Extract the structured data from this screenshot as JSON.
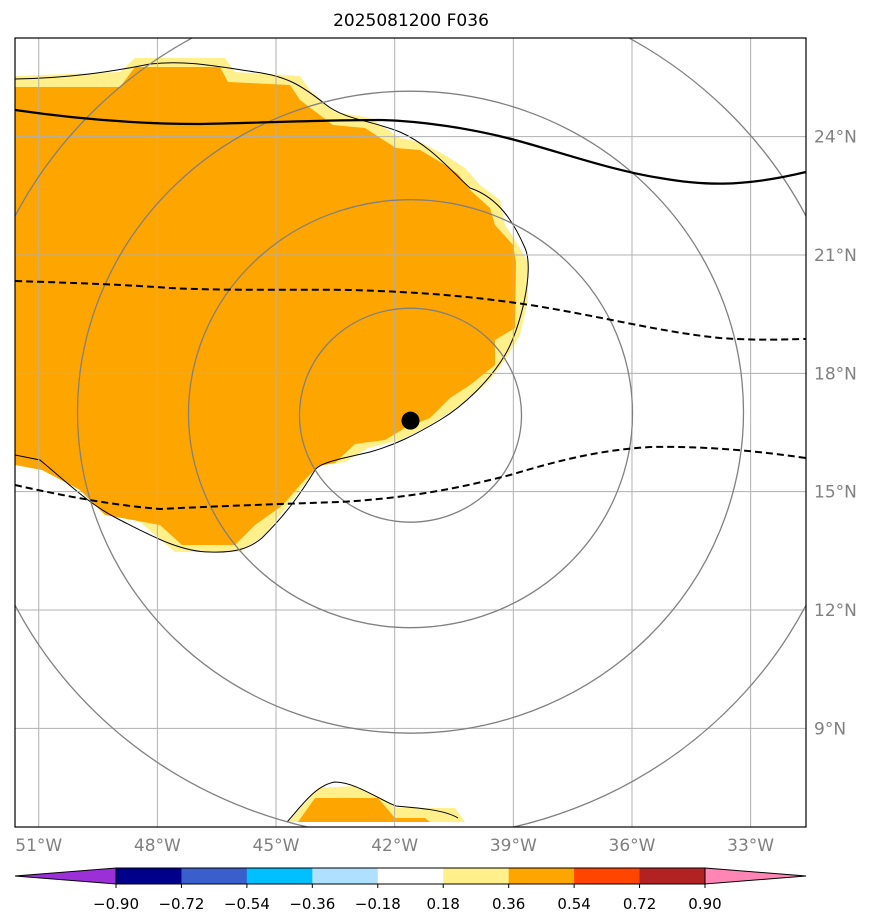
{
  "title": "2025081200 F036",
  "map": {
    "lon_range": [
      -51.6,
      -31.6
    ],
    "lat_range": [
      6.5,
      26.5
    ],
    "lon_ticks": [
      {
        "value": -51,
        "label": "51°W"
      },
      {
        "value": -48,
        "label": "48°W"
      },
      {
        "value": -45,
        "label": "45°W"
      },
      {
        "value": -42,
        "label": "42°W"
      },
      {
        "value": -39,
        "label": "39°W"
      },
      {
        "value": -36,
        "label": "36°W"
      },
      {
        "value": -33,
        "label": "33°W"
      }
    ],
    "lat_ticks": [
      {
        "value": 24,
        "label": "24°N"
      },
      {
        "value": 21,
        "label": "21°N"
      },
      {
        "value": 18,
        "label": "18°N"
      },
      {
        "value": 15,
        "label": "15°N"
      },
      {
        "value": 12,
        "label": "12°N"
      },
      {
        "value": 9,
        "label": "9°N"
      }
    ],
    "grid": true,
    "center_point": {
      "lon": -41.6,
      "lat": 16.8
    },
    "range_ring_count": 4
  },
  "colorbar": {
    "levels": [
      "−0.90",
      "−0.72",
      "−0.54",
      "−0.36",
      "−0.18",
      "0.18",
      "0.36",
      "0.54",
      "0.72",
      "0.90"
    ],
    "colors": [
      "#9b30d9",
      "#00008b",
      "#3a5fcd",
      "#00bfff",
      "#b0e0ff",
      "#ffffff",
      "#fff08c",
      "#ffa500",
      "#ff4500",
      "#b22222",
      "#ff85b4"
    ],
    "extend": "both"
  },
  "colors": {
    "fill_main": "#ffa500",
    "fill_edge": "#fff08c",
    "grid": "#b0b0b0",
    "rings": "#808080",
    "tick_labels": "#808080"
  }
}
